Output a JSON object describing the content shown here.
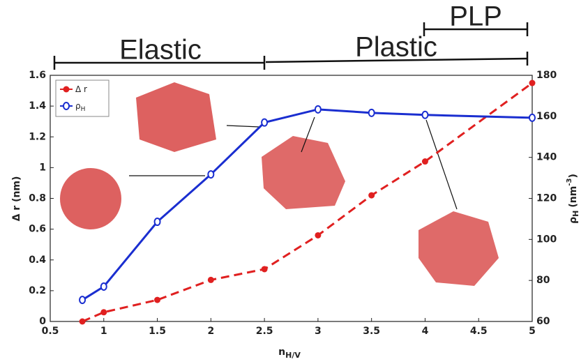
{
  "chart_data": {
    "type": "line",
    "x_label": {
      "main": "n",
      "sub": "H/V"
    },
    "y_label": "Δ r (nm)",
    "y2_label": {
      "main": "ρ",
      "sub": "H",
      "unit": "(nm",
      "sup": "-3",
      "close": ")"
    },
    "annotations": [
      "Elastic",
      "Plastic",
      "PLP"
    ],
    "x": [
      0.8,
      1,
      1.5,
      2,
      2.5,
      3,
      3.5,
      4,
      5
    ],
    "series": [
      {
        "name": "Δ r",
        "color": "#e02020",
        "dashed": true,
        "marker": "dot",
        "values": [
          0,
          0.06,
          0.14,
          0.27,
          0.34,
          0.56,
          0.82,
          1.04,
          1.55
        ]
      },
      {
        "name": "ρ",
        "name_sub": "H",
        "color": "#1a2ed0",
        "dashed": false,
        "marker": "ring",
        "axis": "y2",
        "values": [
          70.5,
          77,
          108.6,
          131.7,
          157,
          163.4,
          161.7,
          160.7,
          159.3
        ]
      }
    ],
    "xlim": [
      0.5,
      5
    ],
    "xticks": [
      0.5,
      1,
      1.5,
      2,
      2.5,
      3,
      3.5,
      4,
      4.5,
      5
    ],
    "ylim": [
      0,
      1.6
    ],
    "yticks": [
      0,
      0.2,
      0.4,
      0.6,
      0.8,
      1,
      1.2,
      1.4,
      1.6
    ],
    "y2lim": [
      60,
      180
    ],
    "y2ticks": [
      60,
      80,
      100,
      120,
      140,
      160,
      180
    ],
    "legend": "upper left"
  }
}
